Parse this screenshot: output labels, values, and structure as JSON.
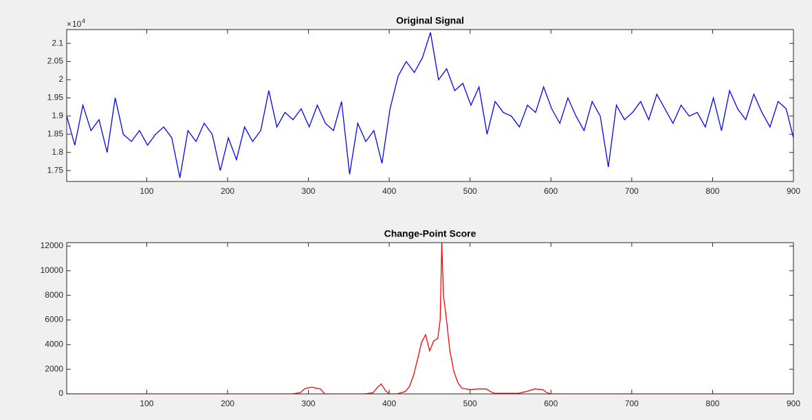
{
  "chart_data": [
    {
      "type": "line",
      "title": "Original Signal",
      "y_exponent_base": "10",
      "y_exponent": "4",
      "x": [
        1,
        11,
        21,
        31,
        41,
        51,
        61,
        71,
        81,
        91,
        101,
        111,
        121,
        131,
        141,
        151,
        161,
        171,
        181,
        191,
        201,
        211,
        221,
        231,
        241,
        251,
        261,
        271,
        281,
        291,
        301,
        311,
        321,
        331,
        341,
        351,
        361,
        371,
        381,
        391,
        401,
        411,
        421,
        431,
        441,
        451,
        461,
        471,
        481,
        491,
        501,
        511,
        521,
        531,
        541,
        551,
        561,
        571,
        581,
        591,
        601,
        611,
        621,
        631,
        641,
        651,
        661,
        671,
        681,
        691,
        701,
        711,
        721,
        731,
        741,
        751,
        761,
        771,
        781,
        791,
        801,
        811,
        821,
        831,
        841,
        851,
        861,
        871,
        881,
        891,
        900
      ],
      "series": [
        {
          "color": "#0000ff",
          "values": [
            19000,
            18200,
            19300,
            18600,
            18900,
            18000,
            19500,
            18500,
            18300,
            18600,
            18200,
            18500,
            18700,
            18400,
            17300,
            18600,
            18300,
            18800,
            18500,
            17500,
            18400,
            17800,
            18700,
            18300,
            18600,
            19700,
            18700,
            19100,
            18900,
            19200,
            18700,
            19300,
            18800,
            18600,
            19400,
            17400,
            18800,
            18300,
            18600,
            17700,
            19200,
            20100,
            20500,
            20200,
            20600,
            21300,
            20000,
            20300,
            19700,
            19900,
            19300,
            19800,
            18500,
            19400,
            19100,
            19000,
            18700,
            19300,
            19100,
            19800,
            19200,
            18800,
            19500,
            19000,
            18600,
            19400,
            19000,
            17600,
            19300,
            18900,
            19100,
            19400,
            18900,
            19600,
            19200,
            18800,
            19300,
            19000,
            19100,
            18700,
            19500,
            18600,
            19700,
            19200,
            18900,
            19600,
            19100,
            18700,
            19400,
            19200,
            18400
          ]
        }
      ],
      "xlim": [
        1,
        900
      ],
      "ylim": [
        17200,
        21380
      ],
      "xticks": [
        100,
        200,
        300,
        400,
        500,
        600,
        700,
        800,
        900
      ],
      "yticks": [
        {
          "value": 17500,
          "label": "1.75"
        },
        {
          "value": 18000,
          "label": "1.8"
        },
        {
          "value": 18500,
          "label": "1.85"
        },
        {
          "value": 19000,
          "label": "1.9"
        },
        {
          "value": 19500,
          "label": "1.95"
        },
        {
          "value": 20000,
          "label": "2"
        },
        {
          "value": 20500,
          "label": "2.05"
        },
        {
          "value": 21000,
          "label": "2.1"
        }
      ],
      "grid": false
    },
    {
      "type": "line",
      "title": "Change-Point Score",
      "x": [
        1,
        100,
        200,
        280,
        290,
        295,
        300,
        305,
        310,
        315,
        320,
        370,
        380,
        385,
        390,
        395,
        400,
        410,
        420,
        425,
        430,
        435,
        440,
        445,
        450,
        455,
        460,
        463,
        465,
        467,
        470,
        475,
        480,
        485,
        490,
        500,
        510,
        520,
        525,
        530,
        560,
        570,
        580,
        590,
        595,
        600,
        700,
        800,
        900
      ],
      "series": [
        {
          "color": "#ff0000",
          "values": [
            0,
            0,
            0,
            0,
            100,
            400,
            500,
            550,
            450,
            400,
            0,
            0,
            100,
            500,
            800,
            300,
            0,
            0,
            200,
            600,
            1500,
            2800,
            4200,
            4800,
            3500,
            4300,
            4500,
            6000,
            12250,
            8000,
            6500,
            3500,
            1800,
            900,
            450,
            350,
            400,
            400,
            200,
            50,
            50,
            200,
            400,
            350,
            100,
            0,
            0,
            0,
            0
          ]
        }
      ],
      "xlim": [
        1,
        900
      ],
      "ylim": [
        0,
        12280
      ],
      "xticks": [
        100,
        200,
        300,
        400,
        500,
        600,
        700,
        800,
        900
      ],
      "yticks": [
        0,
        2000,
        4000,
        6000,
        8000,
        10000,
        12000
      ],
      "grid": false
    }
  ]
}
